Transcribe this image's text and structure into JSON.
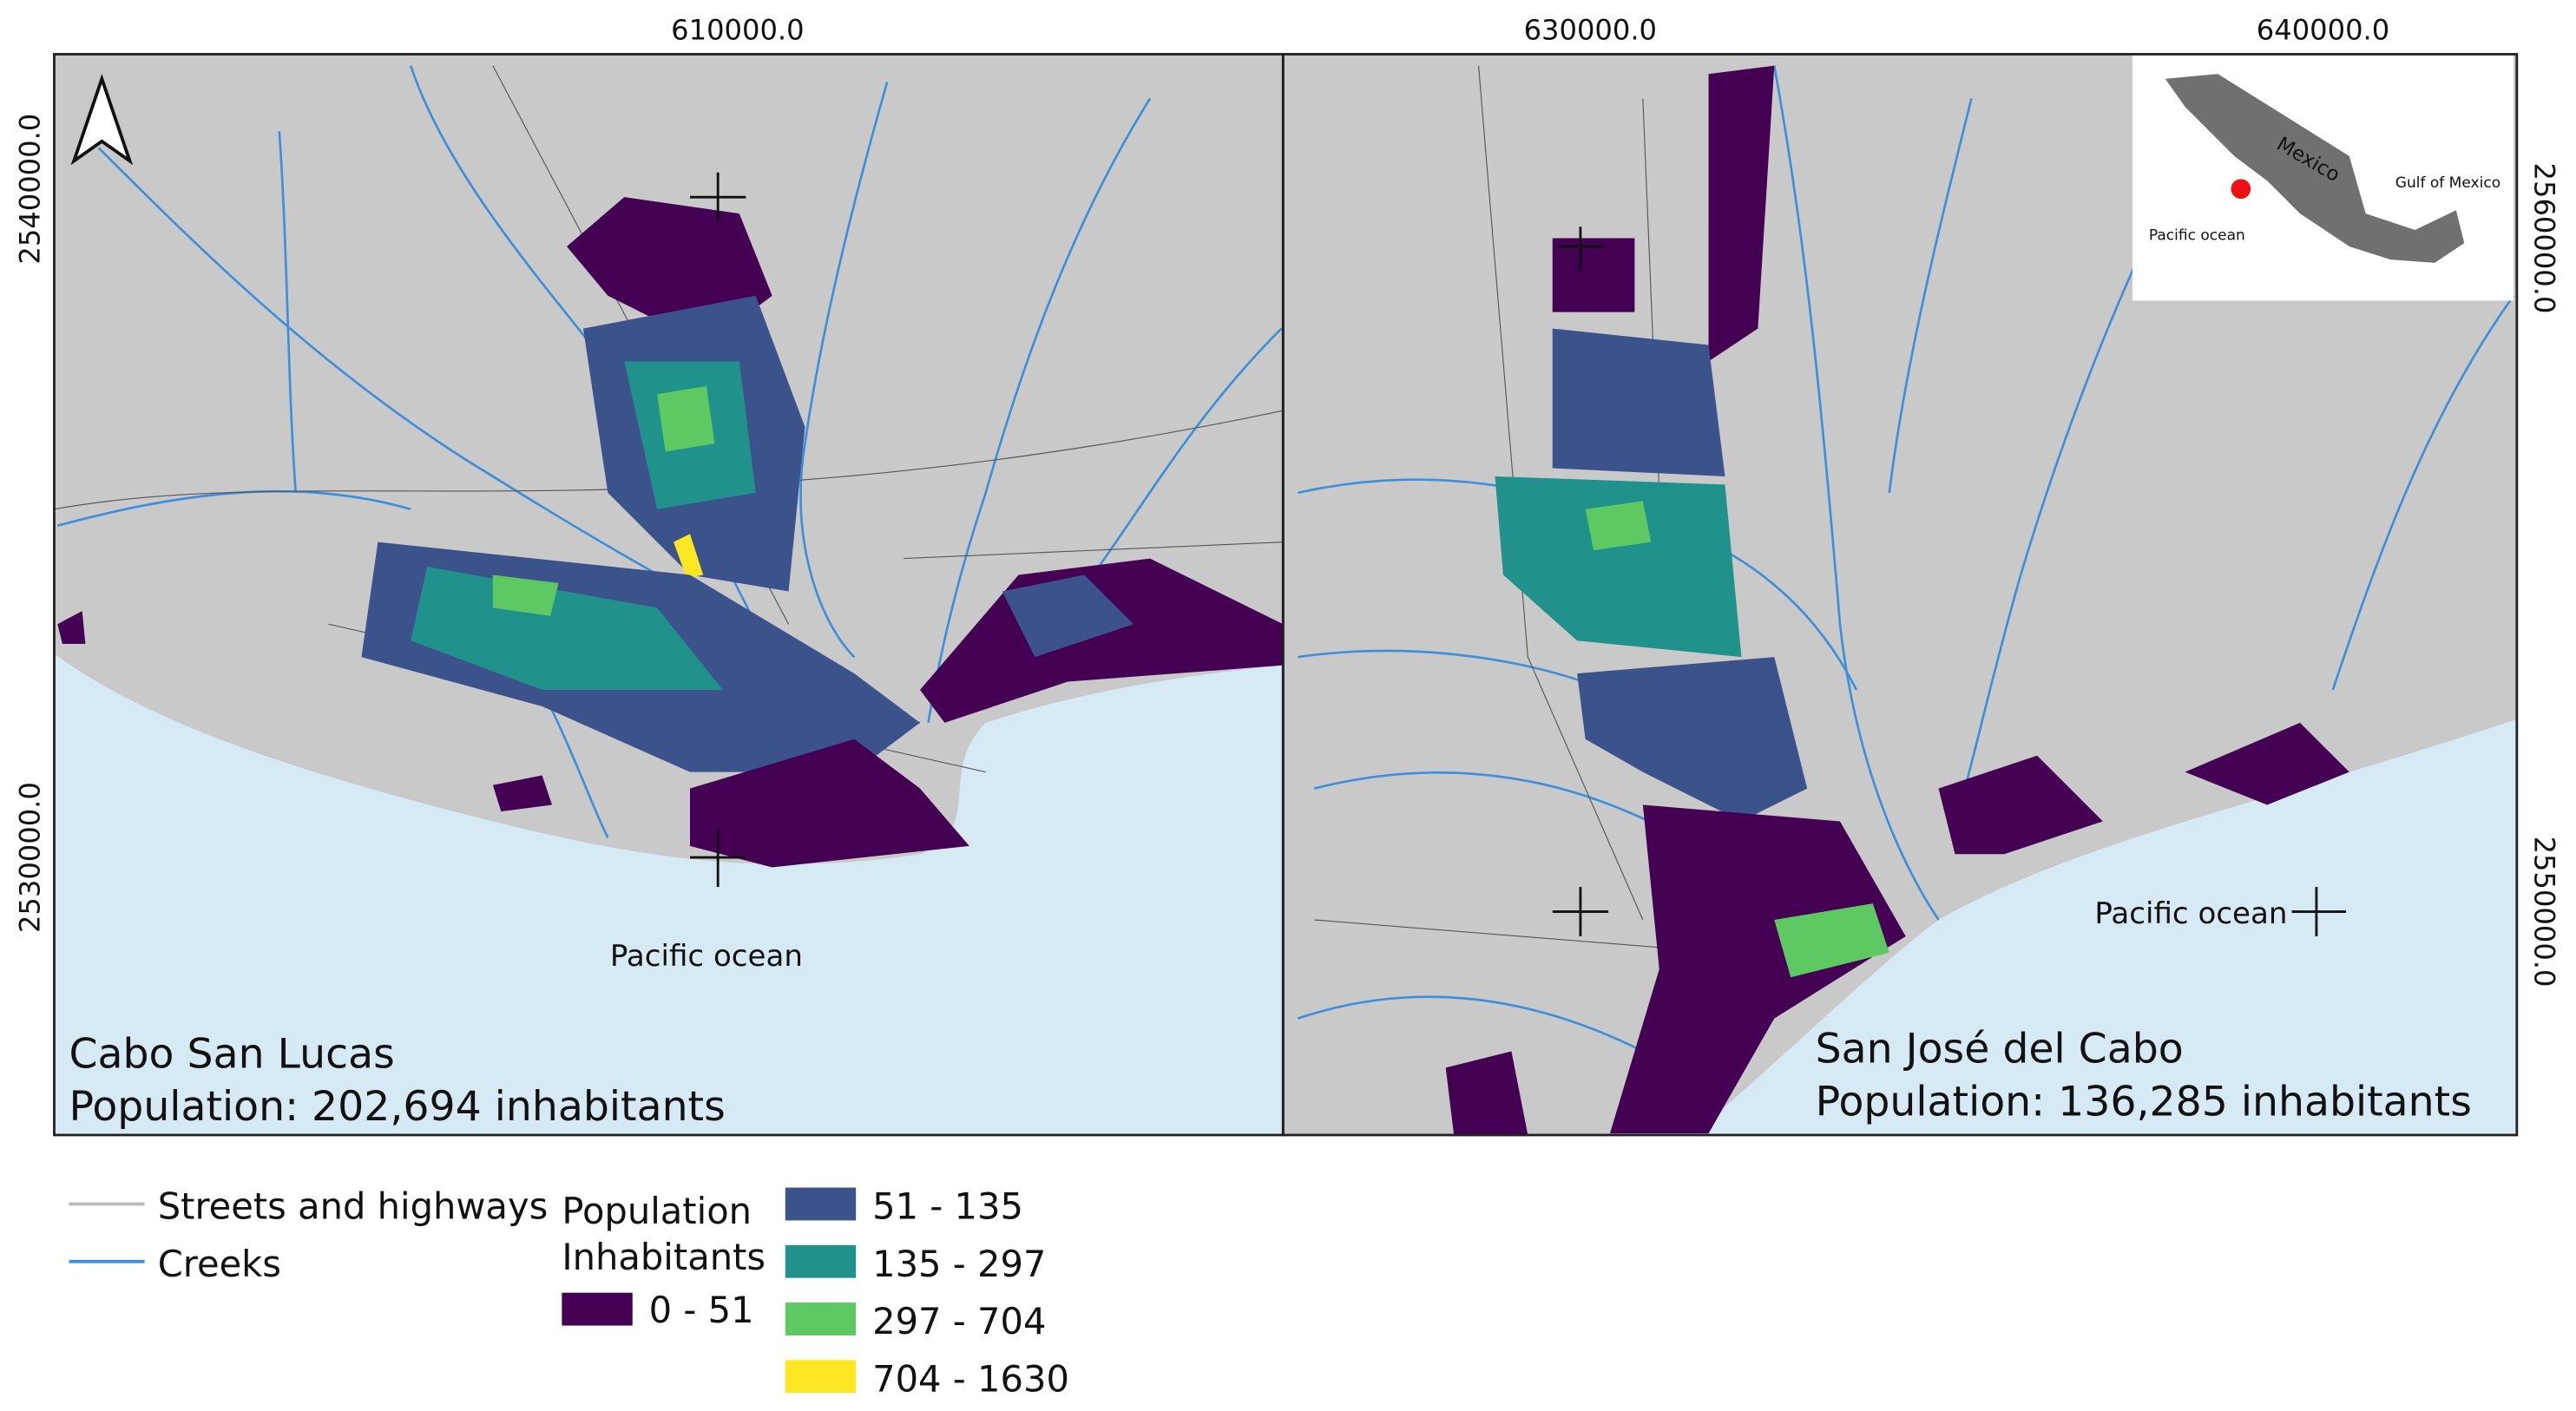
{
  "maps": [
    {
      "title": "Cabo San Lucas",
      "population": "Population: 202,694 inhabitants",
      "sea_label": "Pacific ocean",
      "x_coords": [
        "610000.0"
      ],
      "y_coords": [
        "2540000.0",
        "2530000.0"
      ]
    },
    {
      "title": "San José del Cabo",
      "population": "Population: 136,285 inhabitants",
      "sea_label": "Pacific ocean",
      "x_coords": [
        "630000.0",
        "640000.0"
      ],
      "y_coords": [
        "2560000.0",
        "2550000.0"
      ]
    }
  ],
  "inset": {
    "country": "Mexico",
    "gulf": "Gulf of Mexico",
    "ocean": "Pacific ocean"
  },
  "legend": {
    "lines": [
      "Streets and highways",
      "Creeks"
    ],
    "population_title": "Population",
    "population_subtitle": "Inhabitants",
    "classes": [
      "0 - 51",
      "51 - 135",
      "135 - 297",
      "297 - 704",
      "704 - 1630"
    ]
  }
}
